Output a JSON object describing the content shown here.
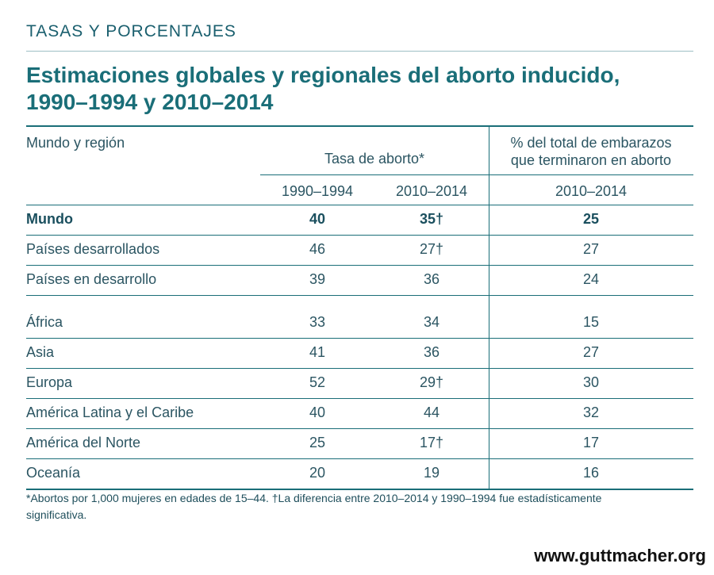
{
  "kicker": "TASAS Y PORCENTAJES",
  "title_line1": "Estimaciones globales y regionales del aborto inducido,",
  "title_line2": "1990–1994 y 2010–2014",
  "chart_data": {
    "type": "table",
    "columns": {
      "region": "Mundo y región",
      "rate_group": "Tasa de aborto*",
      "pct_group_line1": "% del total de embarazos",
      "pct_group_line2": "que terminaron en aborto",
      "rate_1990": "1990–1994",
      "rate_2010": "2010–2014",
      "pct_2010": "2010–2014"
    },
    "rows": [
      {
        "name": "Mundo",
        "rate_1990": "40",
        "rate_2010": "35†",
        "pct_2010": "25"
      },
      {
        "name": "Países desarrollados",
        "rate_1990": "46",
        "rate_2010": "27†",
        "pct_2010": "27"
      },
      {
        "name": "Países en desarrollo",
        "rate_1990": "39",
        "rate_2010": "36",
        "pct_2010": "24"
      },
      {
        "name": "África",
        "rate_1990": "33",
        "rate_2010": "34",
        "pct_2010": "15"
      },
      {
        "name": "Asia",
        "rate_1990": "41",
        "rate_2010": "36",
        "pct_2010": "27"
      },
      {
        "name": "Europa",
        "rate_1990": "52",
        "rate_2010": "29†",
        "pct_2010": "30"
      },
      {
        "name": "América Latina y el Caribe",
        "rate_1990": "40",
        "rate_2010": "44",
        "pct_2010": "32"
      },
      {
        "name": "América del Norte",
        "rate_1990": "25",
        "rate_2010": "17†",
        "pct_2010": "17"
      },
      {
        "name": "Oceanía",
        "rate_1990": "20",
        "rate_2010": "19",
        "pct_2010": "16"
      }
    ]
  },
  "footnote": "*Abortos por 1,000 mujeres en edades de 15–44. †La diferencia entre 2010–2014 y 1990–1994 fue estadísticamente significativa.",
  "site": "www.guttmacher.org"
}
